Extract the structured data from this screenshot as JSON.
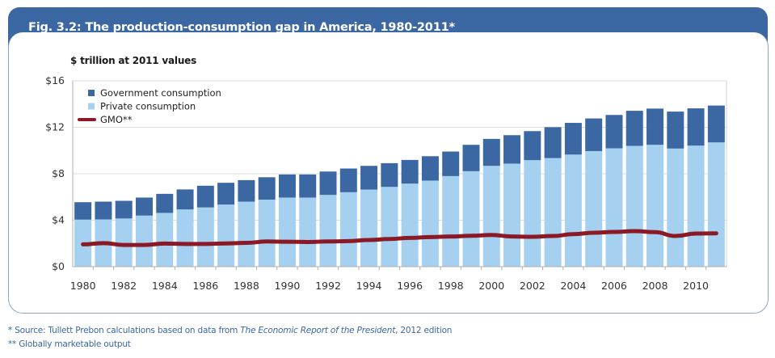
{
  "figure": {
    "title": "Fig. 3.2: The production-consumption gap in America, 1980-2011*",
    "unit_label": "$ trillion at 2011 values"
  },
  "footnotes": {
    "source_prefix": "* Source: Tullett Prebon calculations based on data from ",
    "source_italic": "The Economic Report of the President",
    "source_suffix": ", 2012 edition",
    "gmo_note": "** Globally marketable output"
  },
  "colors": {
    "header": "#3b67a2",
    "government": "#3b67a2",
    "private": "#a5d0f0",
    "gmo": "#8b1a26",
    "footnote": "#3b67a2"
  },
  "chart_data": {
    "type": "bar",
    "stacked": true,
    "title": "Fig. 3.2: The production-consumption gap in America, 1980-2011*",
    "ylabel": "$ trillion at 2011 values",
    "xlabel": "",
    "ylim": [
      0,
      16
    ],
    "yticks": [
      0,
      4,
      8,
      12,
      16
    ],
    "ytick_labels": [
      "$0",
      "$4",
      "$8",
      "$12",
      "$16"
    ],
    "grid": true,
    "legend_position": "top-left",
    "categories": [
      1980,
      1981,
      1982,
      1983,
      1984,
      1985,
      1986,
      1987,
      1988,
      1989,
      1990,
      1991,
      1992,
      1993,
      1994,
      1995,
      1996,
      1997,
      1998,
      1999,
      2000,
      2001,
      2002,
      2003,
      2004,
      2005,
      2006,
      2007,
      2008,
      2009,
      2010,
      2011
    ],
    "xtick_labels": [
      "1980",
      "1982",
      "1984",
      "1986",
      "1988",
      "1990",
      "1992",
      "1994",
      "1996",
      "1998",
      "2000",
      "2002",
      "2004",
      "2006",
      "2008",
      "2010"
    ],
    "series": [
      {
        "name": "Private consumption",
        "type": "bar",
        "values": [
          4.05,
          4.07,
          4.15,
          4.4,
          4.63,
          4.93,
          5.1,
          5.35,
          5.6,
          5.77,
          5.95,
          5.95,
          6.18,
          6.41,
          6.64,
          6.87,
          7.15,
          7.41,
          7.8,
          8.22,
          8.68,
          8.87,
          9.17,
          9.35,
          9.65,
          9.95,
          10.19,
          10.4,
          10.49,
          10.17,
          10.42,
          10.7
        ]
      },
      {
        "name": "Government consumption",
        "type": "bar",
        "values": [
          1.5,
          1.53,
          1.52,
          1.55,
          1.64,
          1.72,
          1.87,
          1.87,
          1.85,
          1.93,
          1.99,
          1.99,
          2.01,
          2.04,
          2.04,
          2.04,
          2.04,
          2.1,
          2.11,
          2.27,
          2.32,
          2.45,
          2.5,
          2.66,
          2.73,
          2.81,
          2.87,
          3.02,
          3.12,
          3.18,
          3.21,
          3.17
        ]
      },
      {
        "name": "GMO**",
        "type": "line",
        "values": [
          1.92,
          2.03,
          1.87,
          1.87,
          1.99,
          1.96,
          1.96,
          2.0,
          2.05,
          2.17,
          2.15,
          2.12,
          2.17,
          2.2,
          2.3,
          2.38,
          2.48,
          2.55,
          2.6,
          2.66,
          2.73,
          2.6,
          2.57,
          2.64,
          2.8,
          2.92,
          2.99,
          3.06,
          2.97,
          2.64,
          2.85,
          2.87
        ]
      }
    ],
    "legend": [
      "Government consumption",
      "Private consumption",
      "GMO**"
    ]
  }
}
